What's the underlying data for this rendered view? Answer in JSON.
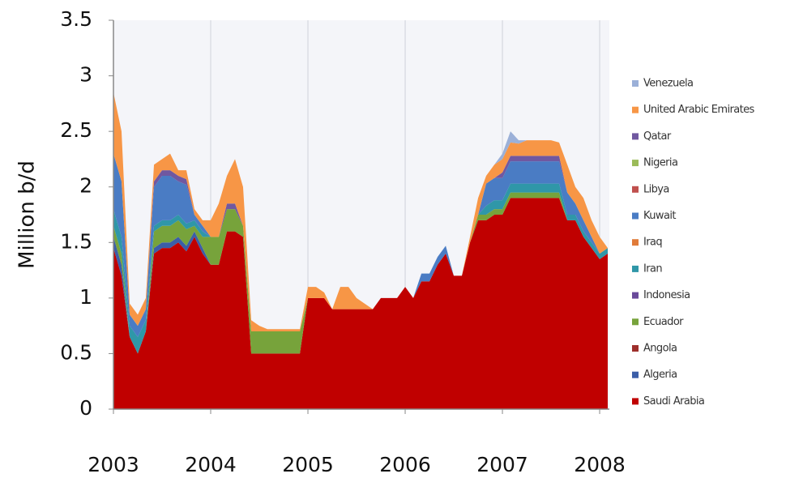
{
  "chart_data": {
    "type": "stacked_area",
    "y_label": "Million b/d",
    "x": [
      2003,
      2003.083,
      2003.167,
      2003.25,
      2003.333,
      2003.417,
      2003.5,
      2003.583,
      2003.667,
      2003.75,
      2003.833,
      2003.917,
      2004,
      2004.083,
      2004.167,
      2004.25,
      2004.333,
      2004.417,
      2004.5,
      2004.583,
      2004.667,
      2004.75,
      2004.833,
      2004.917,
      2005,
      2005.083,
      2005.167,
      2005.25,
      2005.333,
      2005.417,
      2005.5,
      2005.583,
      2005.667,
      2005.75,
      2005.833,
      2005.917,
      2006,
      2006.083,
      2006.167,
      2006.25,
      2006.333,
      2006.417,
      2006.5,
      2006.583,
      2006.667,
      2006.75,
      2006.833,
      2006.917,
      2007,
      2007.083,
      2007.167,
      2007.25,
      2007.333,
      2007.417,
      2007.5,
      2007.583,
      2007.667,
      2007.75,
      2007.833,
      2007.917,
      2008,
      2008.083
    ],
    "xlim": [
      2003,
      2008.083
    ],
    "xticks": [
      2003,
      2004,
      2005,
      2006,
      2007,
      2008
    ],
    "ylim": [
      0,
      3.5
    ],
    "yticks": [
      0,
      0.5,
      1,
      1.5,
      2,
      2.5,
      3,
      3.5
    ],
    "grid": true,
    "series": [
      {
        "name": "Saudi Arabia",
        "color": "#c00000",
        "values": [
          1.45,
          1.2,
          0.65,
          0.5,
          0.7,
          1.4,
          1.45,
          1.45,
          1.5,
          1.42,
          1.55,
          1.4,
          1.3,
          1.3,
          1.6,
          1.6,
          1.55,
          0.5,
          0.5,
          0.5,
          0.5,
          0.5,
          0.5,
          0.5,
          1.0,
          1.0,
          1.0,
          0.9,
          0.9,
          0.9,
          0.9,
          0.9,
          0.9,
          1.0,
          1.0,
          1.0,
          1.1,
          1.0,
          1.15,
          1.15,
          1.3,
          1.4,
          1.2,
          1.2,
          1.5,
          1.7,
          1.7,
          1.75,
          1.75,
          1.9,
          1.9,
          1.9,
          1.9,
          1.9,
          1.9,
          1.9,
          1.7,
          1.7,
          1.55,
          1.45,
          1.35,
          1.4
        ]
      },
      {
        "name": "Algeria",
        "color": "#3b5ea8",
        "values": [
          0.1,
          0.1,
          0,
          0,
          0,
          0.05,
          0.05,
          0.05,
          0.05,
          0.05,
          0.05,
          0.05,
          0,
          0,
          0,
          0,
          0,
          0,
          0,
          0,
          0,
          0,
          0,
          0,
          0,
          0,
          0,
          0,
          0,
          0,
          0,
          0,
          0,
          0,
          0,
          0,
          0,
          0,
          0,
          0,
          0,
          0,
          0,
          0,
          0,
          0,
          0,
          0,
          0,
          0,
          0,
          0,
          0,
          0,
          0,
          0,
          0,
          0,
          0,
          0,
          0,
          0
        ]
      },
      {
        "name": "Angola",
        "color": "#9e2f2b",
        "values": [
          0,
          0,
          0,
          0,
          0,
          0,
          0,
          0,
          0,
          0,
          0,
          0,
          0,
          0,
          0,
          0,
          0,
          0,
          0,
          0,
          0,
          0,
          0,
          0,
          0,
          0,
          0,
          0,
          0,
          0,
          0,
          0,
          0,
          0,
          0,
          0,
          0,
          0,
          0,
          0,
          0,
          0,
          0,
          0,
          0,
          0,
          0,
          0,
          0,
          0,
          0,
          0,
          0,
          0,
          0,
          0,
          0,
          0,
          0,
          0,
          0,
          0
        ]
      },
      {
        "name": "Ecuador",
        "color": "#77a33b",
        "values": [
          0.1,
          0.1,
          0,
          0,
          0,
          0.15,
          0.15,
          0.15,
          0.15,
          0.15,
          0.05,
          0.1,
          0.25,
          0.25,
          0.2,
          0.2,
          0.1,
          0.2,
          0.2,
          0.2,
          0.2,
          0.2,
          0.2,
          0.2,
          0,
          0,
          0,
          0,
          0,
          0,
          0,
          0,
          0,
          0,
          0,
          0,
          0,
          0,
          0,
          0,
          0,
          0,
          0,
          0,
          0,
          0.05,
          0.05,
          0.05,
          0.05,
          0.05,
          0.05,
          0.05,
          0.05,
          0.05,
          0.05,
          0.05,
          0,
          0,
          0,
          0,
          0,
          0
        ]
      },
      {
        "name": "Indonesia",
        "color": "#6a4a9a",
        "values": [
          0,
          0,
          0,
          0,
          0,
          0,
          0,
          0,
          0,
          0,
          0,
          0,
          0,
          0,
          0,
          0,
          0,
          0,
          0,
          0,
          0,
          0,
          0,
          0,
          0,
          0,
          0,
          0,
          0,
          0,
          0,
          0,
          0,
          0,
          0,
          0,
          0,
          0,
          0,
          0,
          0,
          0,
          0,
          0,
          0,
          0,
          0,
          0,
          0,
          0,
          0,
          0,
          0,
          0,
          0,
          0,
          0,
          0,
          0,
          0,
          0,
          0
        ]
      },
      {
        "name": "Iran",
        "color": "#2f97a8",
        "values": [
          0.15,
          0.15,
          0.1,
          0.15,
          0.1,
          0.05,
          0.05,
          0.05,
          0.05,
          0.05,
          0.05,
          0.05,
          0,
          0,
          0,
          0,
          0,
          0,
          0,
          0,
          0,
          0,
          0,
          0,
          0,
          0,
          0,
          0,
          0,
          0,
          0,
          0,
          0,
          0,
          0,
          0,
          0,
          0,
          0,
          0,
          0,
          0,
          0,
          0,
          0,
          0,
          0.08,
          0.08,
          0.08,
          0.08,
          0.08,
          0.08,
          0.08,
          0.08,
          0.08,
          0.08,
          0.05,
          0.05,
          0.05,
          0.05,
          0.05,
          0.05
        ]
      },
      {
        "name": "Iraq",
        "color": "#e07b39",
        "values": [
          0,
          0,
          0,
          0,
          0,
          0,
          0,
          0,
          0,
          0,
          0,
          0,
          0,
          0,
          0,
          0,
          0,
          0,
          0,
          0,
          0,
          0,
          0,
          0,
          0,
          0,
          0,
          0,
          0,
          0,
          0,
          0,
          0,
          0,
          0,
          0,
          0,
          0,
          0,
          0,
          0,
          0,
          0,
          0,
          0,
          0,
          0,
          0,
          0,
          0,
          0,
          0,
          0,
          0,
          0,
          0,
          0,
          0,
          0,
          0,
          0,
          0
        ]
      },
      {
        "name": "Kuwait",
        "color": "#4a7cc4",
        "values": [
          0.5,
          0.5,
          0.1,
          0.1,
          0.1,
          0.35,
          0.4,
          0.4,
          0.3,
          0.35,
          0.05,
          0.05,
          0,
          0,
          0,
          0,
          0,
          0,
          0,
          0,
          0,
          0,
          0,
          0,
          0,
          0,
          0,
          0,
          0,
          0,
          0,
          0,
          0,
          0,
          0,
          0,
          0,
          0,
          0.07,
          0.07,
          0.07,
          0.07,
          0,
          0,
          0,
          0,
          0.2,
          0.2,
          0.2,
          0.2,
          0.2,
          0.2,
          0.2,
          0.2,
          0.2,
          0.2,
          0.2,
          0.1,
          0.1,
          0.05,
          0,
          0
        ]
      },
      {
        "name": "Libya",
        "color": "#c0504d",
        "values": [
          0,
          0,
          0,
          0,
          0,
          0,
          0,
          0,
          0,
          0,
          0,
          0,
          0,
          0,
          0,
          0,
          0,
          0,
          0,
          0,
          0,
          0,
          0,
          0,
          0,
          0,
          0,
          0,
          0,
          0,
          0,
          0,
          0,
          0,
          0,
          0,
          0,
          0,
          0,
          0,
          0,
          0,
          0,
          0,
          0,
          0,
          0,
          0,
          0,
          0,
          0,
          0,
          0,
          0,
          0,
          0,
          0,
          0,
          0,
          0,
          0,
          0
        ]
      },
      {
        "name": "Nigeria",
        "color": "#9bbb59",
        "values": [
          0,
          0,
          0,
          0,
          0,
          0,
          0,
          0,
          0,
          0,
          0,
          0,
          0,
          0,
          0,
          0,
          0,
          0,
          0,
          0,
          0,
          0,
          0,
          0,
          0,
          0,
          0,
          0,
          0,
          0,
          0,
          0,
          0,
          0,
          0,
          0,
          0,
          0,
          0,
          0,
          0,
          0,
          0,
          0,
          0,
          0,
          0,
          0,
          0,
          0,
          0,
          0,
          0,
          0,
          0,
          0,
          0,
          0,
          0,
          0,
          0,
          0
        ]
      },
      {
        "name": "Qatar",
        "color": "#7058a0",
        "values": [
          0,
          0,
          0,
          0,
          0,
          0.05,
          0.05,
          0.05,
          0.05,
          0.05,
          0,
          0,
          0,
          0,
          0.05,
          0.05,
          0,
          0,
          0,
          0,
          0,
          0,
          0,
          0,
          0,
          0,
          0,
          0,
          0,
          0,
          0,
          0,
          0,
          0,
          0,
          0,
          0,
          0,
          0,
          0,
          0,
          0,
          0,
          0,
          0,
          0,
          0,
          0,
          0.05,
          0.05,
          0.05,
          0.05,
          0.05,
          0.05,
          0.05,
          0.05,
          0,
          0,
          0,
          0,
          0,
          0
        ]
      },
      {
        "name": "United Arabic Emirates",
        "color": "#f79646",
        "values": [
          0.55,
          0.45,
          0.1,
          0.1,
          0.1,
          0.15,
          0.1,
          0.15,
          0.05,
          0.08,
          0.05,
          0.05,
          0.15,
          0.3,
          0.25,
          0.4,
          0.35,
          0.1,
          0.05,
          0.02,
          0.02,
          0.02,
          0.02,
          0.02,
          0.1,
          0.1,
          0.05,
          0,
          0.2,
          0.2,
          0.1,
          0.05,
          0,
          0,
          0,
          0,
          0,
          0,
          0,
          0,
          0,
          0,
          0,
          0,
          0.05,
          0.15,
          0.07,
          0.12,
          0.12,
          0.12,
          0.11,
          0.14,
          0.14,
          0.14,
          0.14,
          0.12,
          0.25,
          0.15,
          0.2,
          0.15,
          0.15,
          0
        ]
      },
      {
        "name": "Venezuela",
        "color": "#9bb0d8",
        "values": [
          0,
          0,
          0,
          0,
          0,
          0,
          0,
          0,
          0,
          0,
          0,
          0,
          0,
          0,
          0,
          0,
          0,
          0,
          0,
          0,
          0,
          0,
          0,
          0,
          0,
          0,
          0,
          0,
          0,
          0,
          0,
          0,
          0,
          0,
          0,
          0,
          0,
          0,
          0,
          0,
          0,
          0,
          0,
          0,
          0,
          0,
          0,
          0,
          0.05,
          0.1,
          0.03,
          0,
          0,
          0,
          0,
          0,
          0,
          0,
          0,
          0,
          0,
          0
        ]
      }
    ]
  }
}
